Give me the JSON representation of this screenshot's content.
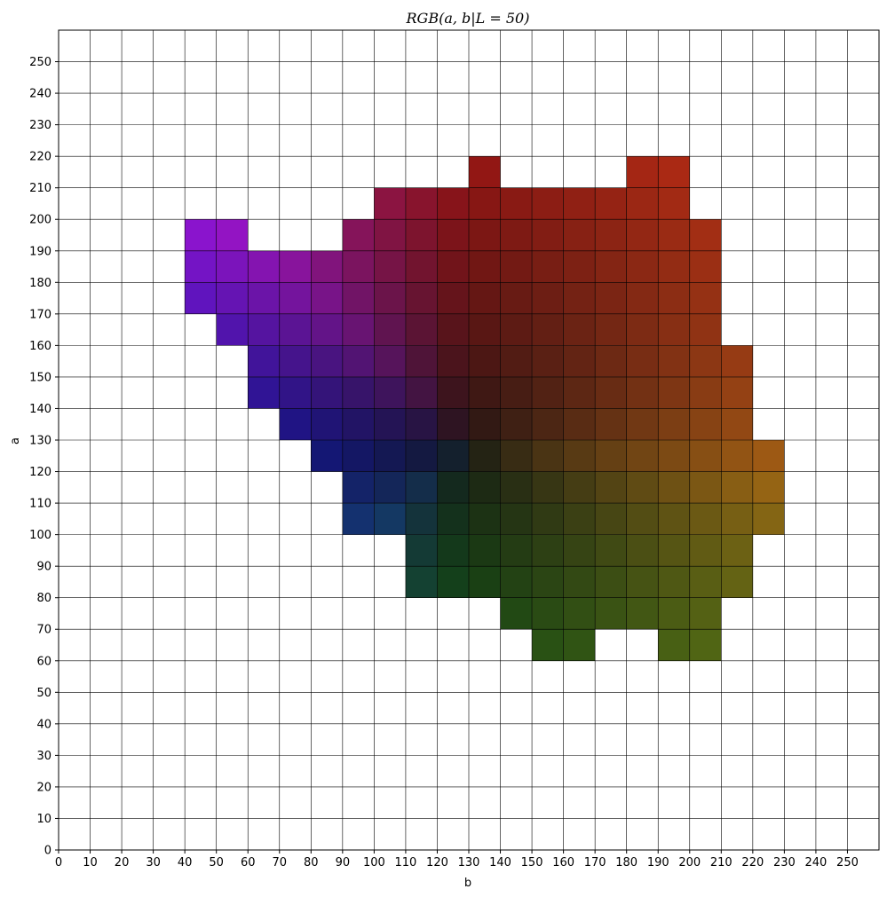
{
  "chart_data": {
    "type": "heatmap",
    "title": "RGB(a, b|L = 50)",
    "xlabel": "b",
    "ylabel": "a",
    "xlim": [
      0,
      260
    ],
    "ylim": [
      0,
      260
    ],
    "cell_size": 10,
    "x_ticks": [
      0,
      10,
      20,
      30,
      40,
      50,
      60,
      70,
      80,
      90,
      100,
      110,
      120,
      130,
      140,
      150,
      160,
      170,
      180,
      190,
      200,
      210,
      220,
      230,
      240,
      250
    ],
    "y_ticks": [
      0,
      10,
      20,
      30,
      40,
      50,
      60,
      70,
      80,
      90,
      100,
      110,
      120,
      130,
      140,
      150,
      160,
      170,
      180,
      190,
      200,
      210,
      220,
      230,
      240,
      250
    ],
    "grid": true,
    "rows": [
      {
        "a": 210,
        "b_ranges": [
          [
            130,
            140
          ],
          [
            180,
            200
          ]
        ]
      },
      {
        "a": 200,
        "b_ranges": [
          [
            100,
            180
          ],
          [
            180,
            200
          ]
        ]
      },
      {
        "a": 190,
        "b_ranges": [
          [
            40,
            60
          ],
          [
            90,
            210
          ]
        ]
      },
      {
        "a": 180,
        "b_ranges": [
          [
            40,
            90
          ],
          [
            90,
            210
          ]
        ]
      },
      {
        "a": 170,
        "b_ranges": [
          [
            40,
            210
          ]
        ]
      },
      {
        "a": 160,
        "b_ranges": [
          [
            50,
            210
          ]
        ]
      },
      {
        "a": 150,
        "b_ranges": [
          [
            60,
            220
          ]
        ]
      },
      {
        "a": 140,
        "b_ranges": [
          [
            60,
            220
          ]
        ]
      },
      {
        "a": 130,
        "b_ranges": [
          [
            70,
            220
          ]
        ]
      },
      {
        "a": 120,
        "b_ranges": [
          [
            80,
            230
          ]
        ]
      },
      {
        "a": 110,
        "b_ranges": [
          [
            90,
            230
          ]
        ]
      },
      {
        "a": 100,
        "b_ranges": [
          [
            90,
            230
          ]
        ]
      },
      {
        "a": 90,
        "b_ranges": [
          [
            110,
            220
          ]
        ]
      },
      {
        "a": 80,
        "b_ranges": [
          [
            110,
            220
          ]
        ]
      },
      {
        "a": 70,
        "b_ranges": [
          [
            140,
            210
          ]
        ]
      },
      {
        "a": 60,
        "b_ranges": [
          [
            150,
            170
          ],
          [
            190,
            210
          ]
        ]
      }
    ]
  }
}
